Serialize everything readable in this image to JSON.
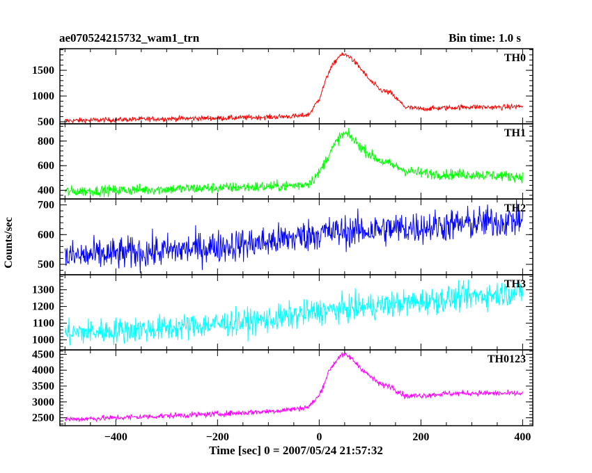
{
  "header": {
    "title": "ae070524215732_wam1_trn",
    "bin_time": "Bin time: 1.0 s"
  },
  "chart_data": {
    "type": "line",
    "title": "ae070524215732_wam1_trn",
    "xlabel": "Time [sec] 0 = 2007/05/24 21:57:32",
    "ylabel": "Counts/sec",
    "xlim": [
      -510,
      420
    ],
    "x_ticks": [
      -400,
      -200,
      0,
      200,
      400
    ],
    "x_tick_labels": [
      "−400",
      "−200",
      "0",
      "200",
      "400"
    ],
    "x_range": [
      -500,
      400
    ],
    "bin_time_s": 1.0,
    "grid": false,
    "panels": [
      {
        "name": "TH0",
        "color": "#ff0000",
        "ylim": [
          460,
          1920
        ],
        "y_ticks": [
          500,
          1000,
          1500
        ],
        "y_tick_labels": [
          "500",
          "1000",
          "1500"
        ],
        "x": [
          -500,
          -400,
          -300,
          -200,
          -100,
          -40,
          -20,
          0,
          20,
          40,
          50,
          60,
          80,
          100,
          120,
          140,
          170,
          200,
          250,
          300,
          350,
          400
        ],
        "values": [
          520,
          540,
          560,
          570,
          590,
          610,
          640,
          950,
          1500,
          1790,
          1800,
          1770,
          1550,
          1300,
          1120,
          1060,
          780,
          750,
          770,
          790,
          780,
          800
        ],
        "noise": 25
      },
      {
        "name": "TH1",
        "color": "#00ff00",
        "ylim": [
          330,
          940
        ],
        "y_ticks": [
          400,
          600,
          800
        ],
        "y_tick_labels": [
          "400",
          "600",
          "800"
        ],
        "x": [
          -500,
          -400,
          -300,
          -200,
          -100,
          -40,
          -20,
          0,
          20,
          40,
          50,
          60,
          80,
          100,
          120,
          140,
          170,
          200,
          250,
          300,
          350,
          400
        ],
        "values": [
          390,
          400,
          410,
          420,
          430,
          440,
          460,
          540,
          700,
          830,
          860,
          840,
          760,
          690,
          640,
          610,
          560,
          540,
          530,
          530,
          520,
          510
        ],
        "noise": 22
      },
      {
        "name": "TH2",
        "color": "#0000ff",
        "ylim": [
          465,
          720
        ],
        "y_ticks": [
          500,
          600,
          700
        ],
        "y_tick_labels": [
          "500",
          "600",
          "700"
        ],
        "x": [
          -500,
          -300,
          -100,
          0,
          200,
          400
        ],
        "values": [
          525,
          545,
          575,
          605,
          625,
          650
        ],
        "noise": 28
      },
      {
        "name": "TH3",
        "color": "#00ffff",
        "ylim": [
          940,
          1390
        ],
        "y_ticks": [
          1000,
          1100,
          1200,
          1300
        ],
        "y_tick_labels": [
          "1000",
          "1100",
          "1200",
          "1300"
        ],
        "x": [
          -500,
          -300,
          -100,
          0,
          200,
          400
        ],
        "values": [
          1040,
          1070,
          1120,
          1170,
          1230,
          1290
        ],
        "noise": 40
      },
      {
        "name": "TH0123",
        "color": "#ff00ff",
        "ylim": [
          2250,
          4640
        ],
        "y_ticks": [
          2500,
          3000,
          3500,
          4000,
          4500
        ],
        "y_tick_labels": [
          "2500",
          "3000",
          "3500",
          "4000",
          "4500"
        ],
        "x": [
          -500,
          -400,
          -300,
          -200,
          -100,
          -40,
          -20,
          0,
          20,
          40,
          50,
          60,
          80,
          100,
          120,
          140,
          170,
          200,
          250,
          300,
          350,
          400
        ],
        "values": [
          2450,
          2500,
          2560,
          2620,
          2700,
          2790,
          2850,
          3200,
          4000,
          4450,
          4480,
          4420,
          4100,
          3800,
          3550,
          3500,
          3180,
          3200,
          3260,
          3280,
          3270,
          3260
        ],
        "noise": 45
      }
    ]
  }
}
